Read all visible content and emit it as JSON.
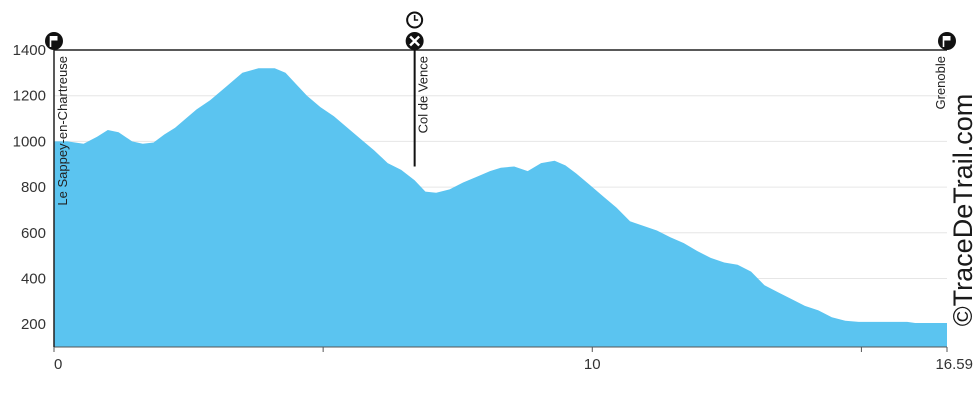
{
  "chart_data": {
    "type": "area",
    "xlim": [
      0,
      16.59
    ],
    "ylim": [
      100,
      1400
    ],
    "x_ticks": [
      {
        "value": 0,
        "label": "0"
      },
      {
        "value": 5,
        "label": ""
      },
      {
        "value": 10,
        "label": "10"
      },
      {
        "value": 15,
        "label": ""
      },
      {
        "value": 16.59,
        "label": "16.59"
      }
    ],
    "y_ticks": [
      {
        "value": 200,
        "label": "200"
      },
      {
        "value": 400,
        "label": "400"
      },
      {
        "value": 600,
        "label": "600"
      },
      {
        "value": 800,
        "label": "800"
      },
      {
        "value": 1000,
        "label": "1000"
      },
      {
        "value": 1200,
        "label": "1200"
      },
      {
        "value": 1400,
        "label": "1400"
      }
    ],
    "grid": true,
    "fill_color": "#5bc4f0",
    "series": [
      {
        "x": [
          0,
          0.25,
          0.55,
          0.8,
          1.0,
          1.2,
          1.45,
          1.65,
          1.85,
          2.05,
          2.25,
          2.45,
          2.65,
          2.9,
          3.2,
          3.5,
          3.8,
          4.1,
          4.3,
          4.5,
          4.7,
          4.95,
          5.2,
          5.45,
          5.7,
          5.95,
          6.2,
          6.45,
          6.7,
          6.9,
          7.1,
          7.35,
          7.6,
          7.9,
          8.1,
          8.3,
          8.55,
          8.8,
          9.05,
          9.3,
          9.5,
          9.7,
          9.95,
          10.2,
          10.45,
          10.7,
          10.95,
          11.2,
          11.45,
          11.7,
          11.95,
          12.2,
          12.45,
          12.7,
          12.95,
          13.2,
          13.45,
          13.7,
          13.95,
          14.2,
          14.45,
          14.7,
          14.95,
          15.2,
          15.45,
          15.7,
          15.85,
          16.0,
          16.3,
          16.59
        ],
        "y": [
          1000,
          1000,
          990,
          1020,
          1050,
          1040,
          1000,
          990,
          995,
          1030,
          1060,
          1100,
          1140,
          1180,
          1240,
          1300,
          1320,
          1320,
          1300,
          1250,
          1200,
          1150,
          1110,
          1060,
          1010,
          960,
          905,
          875,
          830,
          780,
          775,
          790,
          820,
          850,
          870,
          885,
          890,
          870,
          905,
          915,
          895,
          860,
          810,
          760,
          710,
          650,
          630,
          610,
          580,
          555,
          520,
          490,
          470,
          460,
          430,
          370,
          340,
          310,
          280,
          260,
          230,
          215,
          210,
          210,
          210,
          210,
          210,
          205,
          205,
          205
        ]
      }
    ],
    "markers": [
      {
        "x": 0,
        "label": "Le Sappey-en-Chartreuse",
        "type": "flag-icon"
      },
      {
        "x": 6.7,
        "label": "Col de Vence",
        "type": "refreshment-icon"
      },
      {
        "x": 16.59,
        "label": "Grenoble",
        "type": "flag-icon"
      }
    ]
  },
  "watermark": "©TraceDeTrail.com"
}
